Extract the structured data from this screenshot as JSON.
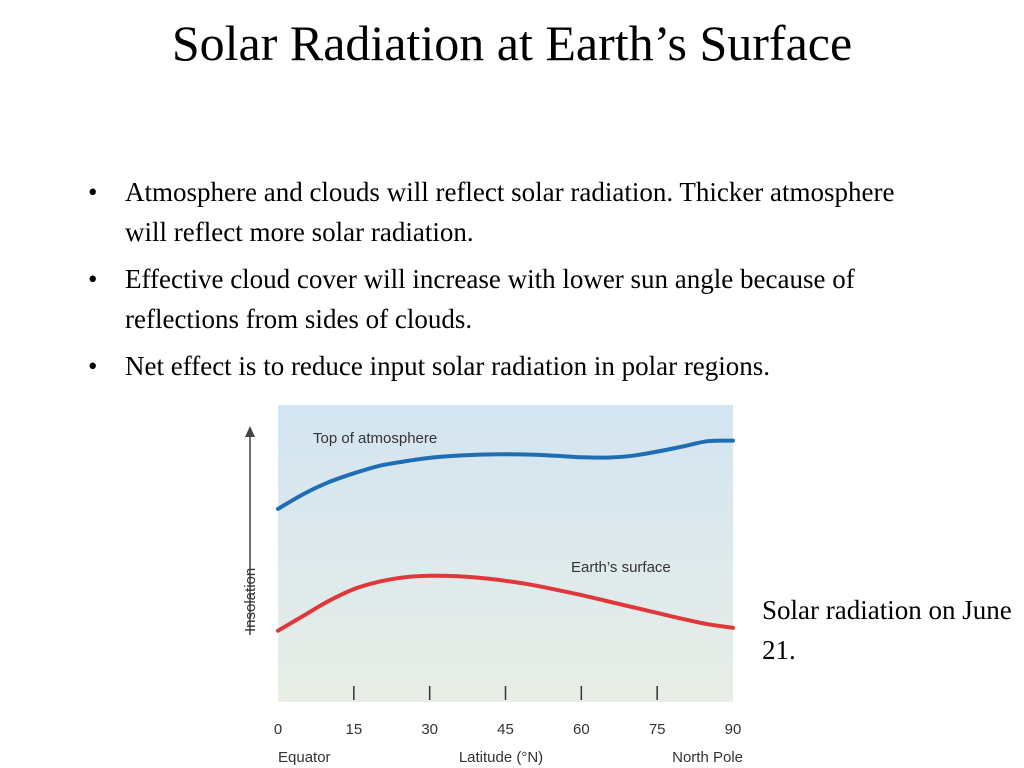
{
  "slide": {
    "title": "Solar Radiation at Earth’s Surface",
    "bullets": [
      "Atmosphere and clouds will reflect solar radiation. Thicker atmosphere will reflect more solar radiation.",
      "Effective cloud cover will increase with lower sun angle because of reflections from sides of clouds.",
      "Net effect is to reduce input solar radiation in polar regions."
    ],
    "caption": "Solar radiation on June 21."
  },
  "chart_data": {
    "type": "line",
    "xlabel": "Latitude (°N)",
    "ylabel": "Insolation",
    "x_ticks": [
      0,
      15,
      30,
      45,
      60,
      75,
      90
    ],
    "x_end_labels": {
      "left": "Equator",
      "right": "North Pole"
    },
    "xlim": [
      0,
      90
    ],
    "ylim": [
      0,
      1
    ],
    "y_tick_labels": false,
    "grid": false,
    "legend": "inline labels",
    "colors": {
      "top": "#1f6db3",
      "surface": "#e0373a",
      "bg_top": "#d3e4f1",
      "bg_bottom": "#e8eee6"
    },
    "series": [
      {
        "name": "Top of atmosphere",
        "color": "#1f6db3",
        "x": [
          0,
          5,
          10,
          15,
          20,
          25,
          30,
          35,
          40,
          45,
          50,
          55,
          60,
          65,
          70,
          75,
          80,
          85,
          90
        ],
        "y": [
          0.65,
          0.7,
          0.74,
          0.77,
          0.795,
          0.81,
          0.822,
          0.829,
          0.833,
          0.834,
          0.833,
          0.829,
          0.824,
          0.823,
          0.829,
          0.843,
          0.86,
          0.878,
          0.88
        ]
      },
      {
        "name": "Earth’s surface",
        "color": "#e0373a",
        "x": [
          0,
          5,
          10,
          15,
          20,
          25,
          30,
          35,
          40,
          45,
          50,
          55,
          60,
          65,
          70,
          75,
          80,
          85,
          90
        ],
        "y": [
          0.24,
          0.29,
          0.34,
          0.38,
          0.405,
          0.42,
          0.425,
          0.424,
          0.418,
          0.408,
          0.395,
          0.378,
          0.36,
          0.34,
          0.32,
          0.3,
          0.28,
          0.262,
          0.25
        ]
      }
    ]
  }
}
